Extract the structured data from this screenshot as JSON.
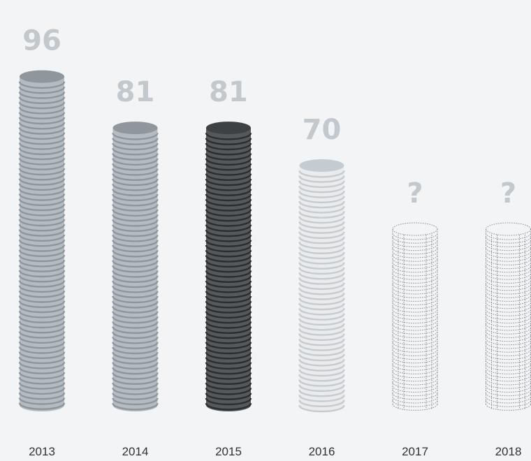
{
  "chart_data": {
    "type": "bar",
    "title": "",
    "xlabel": "",
    "ylabel": "",
    "categories": [
      "2013",
      "2014",
      "2015",
      "2016",
      "2017",
      "2018"
    ],
    "values": [
      96,
      81,
      81,
      70,
      null,
      null
    ],
    "data_labels": [
      "96",
      "81",
      "81",
      "70",
      "?",
      "?"
    ],
    "highlight_category": "2015",
    "ylim": [
      0,
      100
    ],
    "grid": false,
    "legend": "none",
    "colors": {
      "default_body": "#b4bbc1",
      "default_stripe": "#8e969d",
      "default_top": "#8f979d",
      "highlight_body": "#55595c",
      "highlight_stripe": "#2b2e31",
      "highlight_top": "#3d4144",
      "faded_body": "#e9ebed",
      "faded_stripe": "#c6cbcf",
      "faded_top": "#c5ccd1",
      "unknown_outline": "#8a8f94",
      "label_color": "#c3c8cd",
      "axis_text": "#2f3336",
      "background": "#f2f4f6"
    }
  }
}
